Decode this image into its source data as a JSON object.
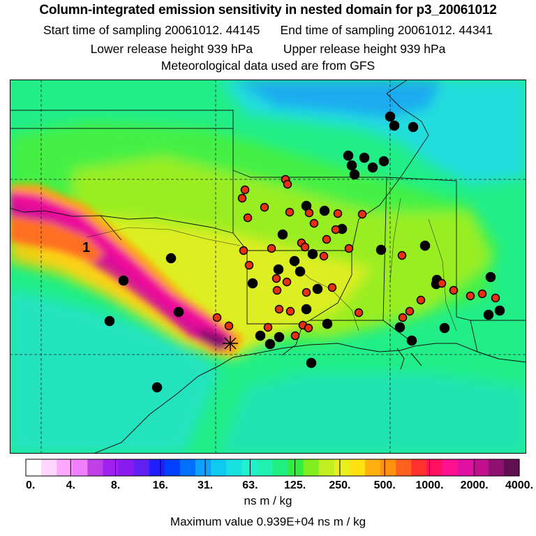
{
  "header": {
    "title": "Column-integrated emission sensitivity in nested domain for p3_20061012",
    "start_time": "Start time of sampling 20061012. 44145",
    "end_time": "End time of sampling 20061012. 44341",
    "lower_release": "Lower release height  939 hPa",
    "upper_release": "Upper release height  939 hPa",
    "met_data": "Meteorological data used are from GFS"
  },
  "map": {
    "plume_label": "1",
    "colors": {
      "background": "#22ee88",
      "land_green": "#44f044",
      "lime": "#99ee22",
      "yellow": "#ddee22",
      "gold": "#ffcc11",
      "cyan": "#22dddd",
      "sky": "#1199ee",
      "magenta": "#ee1199",
      "plume_core": "#aa1188",
      "receptor_fill_red": "#e83010",
      "receptor_fill_black": "#000000"
    }
  },
  "colorbar": {
    "tick_labels": [
      "0.",
      "4.",
      "8.",
      "16.",
      "31.",
      "63.",
      "125.",
      "250.",
      "500.",
      "1000.",
      "2000.",
      "4000."
    ],
    "colors": [
      "#ffffff",
      "#ffd6ff",
      "#ffa8ff",
      "#f080ff",
      "#c040e8",
      "#a020f0",
      "#8a1af0",
      "#6020f0",
      "#2020ff",
      "#0040ff",
      "#0070ff",
      "#10a0ff",
      "#10c8f0",
      "#18e0e0",
      "#20f0d0",
      "#20f0b0",
      "#20ee80",
      "#30ee40",
      "#80ee20",
      "#c0ee20",
      "#e8ee20",
      "#ffe010",
      "#ffb010",
      "#ff9010",
      "#ff6020",
      "#ff3030",
      "#ff1060",
      "#ff1090",
      "#e010a0",
      "#c01090",
      "#901070",
      "#601050"
    ]
  },
  "footer": {
    "units": "ns m / kg",
    "max_value": "Maximum value  0.939E+04 ns m / kg"
  }
}
